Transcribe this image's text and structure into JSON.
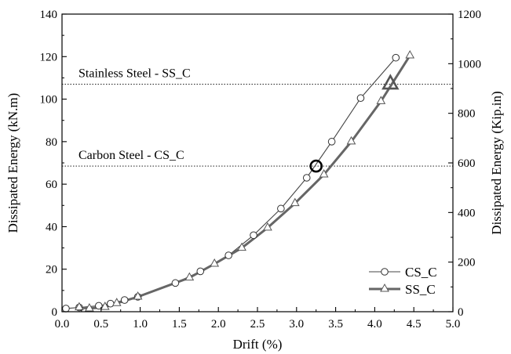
{
  "chart_data": {
    "type": "line",
    "xlabel": "Drift (%)",
    "ylabel": "Dissipated Energy (kN.m)",
    "y2label": "Dissipated Energy (Kip.in)",
    "xlim": [
      0.0,
      5.0
    ],
    "ylim": [
      0,
      140
    ],
    "y2lim": [
      0,
      1200
    ],
    "x_ticks": [
      "0.0",
      "0.5",
      "1.0",
      "1.5",
      "2.0",
      "2.5",
      "3.0",
      "3.5",
      "4.0",
      "4.5",
      "5.0"
    ],
    "y_ticks": [
      "0",
      "20",
      "40",
      "60",
      "80",
      "100",
      "120",
      "140"
    ],
    "y2_ticks": [
      "0",
      "200",
      "400",
      "600",
      "800",
      "1000",
      "1200"
    ],
    "grid": false,
    "legend_position": "bottom-right",
    "series": [
      {
        "name": "CS_C",
        "marker": "circle",
        "color": "#444444",
        "x": [
          0.05,
          0.22,
          0.47,
          0.62,
          0.8,
          0.97,
          1.45,
          1.77,
          2.13,
          2.45,
          2.8,
          3.13,
          3.45,
          3.82,
          4.27
        ],
        "y": [
          1.5,
          2.0,
          2.8,
          3.8,
          5.5,
          7.0,
          13.5,
          19.0,
          26.5,
          36.0,
          48.5,
          63.0,
          80.0,
          100.5,
          119.5
        ]
      },
      {
        "name": "SS_C",
        "marker": "triangle",
        "color": "#666666",
        "x": [
          0.22,
          0.35,
          0.55,
          0.7,
          0.97,
          1.63,
          1.95,
          2.3,
          2.63,
          2.98,
          3.35,
          3.7,
          4.08,
          4.45
        ],
        "y": [
          2.0,
          1.5,
          2.2,
          4.0,
          7.0,
          16.0,
          22.5,
          30.0,
          39.5,
          51.0,
          64.5,
          80.0,
          99.0,
          120.5
        ]
      }
    ],
    "reference_lines": [
      {
        "label": "Stainless Steel - SS_C",
        "y": 107
      },
      {
        "label": "Carbon Steel - CS_C",
        "y": 68.5
      }
    ],
    "highlight_points": [
      {
        "series": "CS_C",
        "marker": "circle",
        "x": 3.25,
        "y": 68.5
      },
      {
        "series": "SS_C",
        "marker": "triangle",
        "x": 4.2,
        "y": 107
      }
    ]
  }
}
